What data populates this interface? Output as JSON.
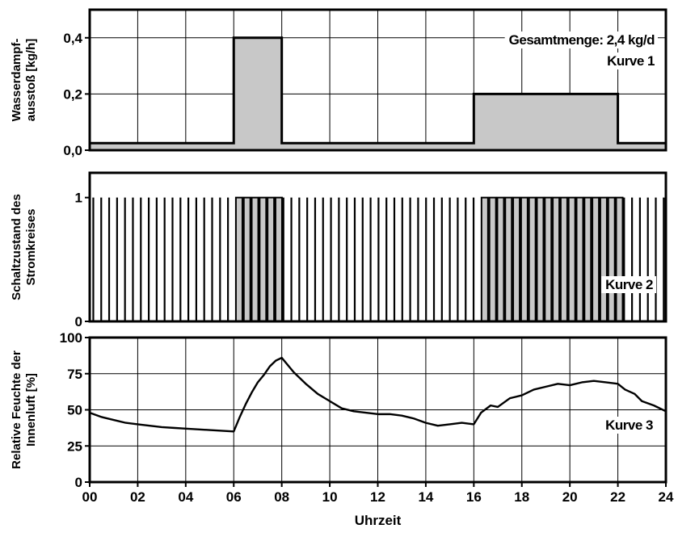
{
  "chart_data": [
    {
      "type": "area",
      "id": "kurve1",
      "ylabel_lines": [
        "Wasserdampf-",
        "ausstoß [kg/h]"
      ],
      "yticks": [
        "0,0",
        "0,2",
        "0,4"
      ],
      "ylim": [
        0,
        0.5
      ],
      "xlim": [
        0,
        24
      ],
      "grid": true,
      "annotations": [
        "Gesamtmenge: 2,4 kg/d",
        "Kurve 1"
      ],
      "series": [
        {
          "x": [
            0,
            6,
            6,
            8,
            8,
            16,
            16,
            22,
            22,
            24
          ],
          "y": [
            0.025,
            0.025,
            0.4,
            0.4,
            0.025,
            0.025,
            0.2,
            0.2,
            0.025,
            0.025
          ]
        }
      ]
    },
    {
      "type": "bar",
      "id": "kurve2",
      "ylabel_lines": [
        "Schaltzustand des",
        "Stromkreises"
      ],
      "yticks": [
        "0",
        "1"
      ],
      "ylim": [
        0,
        1.2
      ],
      "xlim": [
        0,
        24
      ],
      "grid": false,
      "annotations": [
        "Kurve 2"
      ],
      "pulse_period_h": 0.33,
      "pulse_width_h": 0.05,
      "filled_ranges": [
        [
          6,
          8
        ],
        [
          16,
          22
        ]
      ],
      "filled_width_h": 0.27
    },
    {
      "type": "line",
      "id": "kurve3",
      "ylabel_lines": [
        "Relative Feuchte der",
        "Innenluft [%]"
      ],
      "yticks": [
        "0",
        "25",
        "50",
        "75",
        "100"
      ],
      "ylim": [
        0,
        100
      ],
      "xlim": [
        0,
        24
      ],
      "grid": true,
      "annotations": [
        "Kurve 3"
      ],
      "series": [
        {
          "x": [
            0,
            0.5,
            1,
            1.5,
            2,
            2.5,
            3,
            3.5,
            4,
            4.5,
            5,
            5.5,
            6,
            6.25,
            6.5,
            6.75,
            7,
            7.25,
            7.5,
            7.75,
            8,
            8.5,
            9,
            9.5,
            10,
            10.5,
            11,
            11.5,
            12,
            12.5,
            13,
            13.5,
            14,
            14.5,
            15,
            15.5,
            16,
            16.3,
            16.7,
            17,
            17.5,
            18,
            18.5,
            19,
            19.5,
            20,
            20.5,
            21,
            21.5,
            22,
            22.3,
            22.7,
            23,
            23.5,
            24
          ],
          "y": [
            48,
            45,
            43,
            41,
            40,
            39,
            38,
            37.5,
            37,
            36.5,
            36,
            35.5,
            35,
            45,
            54,
            62,
            69,
            74,
            80,
            84,
            86,
            76,
            68,
            61,
            56,
            51,
            49,
            48,
            47,
            47,
            46,
            44,
            41,
            39,
            40,
            41,
            40,
            48,
            53,
            52,
            58,
            60,
            64,
            66,
            68,
            67,
            69,
            70,
            69,
            68,
            64,
            61,
            56,
            53,
            49
          ]
        }
      ]
    }
  ],
  "xaxis": {
    "ticks": [
      "00",
      "02",
      "04",
      "06",
      "08",
      "10",
      "12",
      "14",
      "16",
      "18",
      "20",
      "22",
      "24"
    ],
    "title": "Uhrzeit"
  }
}
